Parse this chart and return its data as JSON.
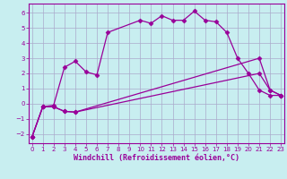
{
  "background_color": "#c8eef0",
  "grid_color": "#aaaacc",
  "line_color": "#990099",
  "xlabel": "Windchill (Refroidissement éolien,°C)",
  "xlabel_fontsize": 6.0,
  "ytick_labels": [
    "-2",
    "-1",
    "0",
    "1",
    "2",
    "3",
    "4",
    "5",
    "6"
  ],
  "yticks": [
    -2,
    -1,
    0,
    1,
    2,
    3,
    4,
    5,
    6
  ],
  "xticks": [
    0,
    1,
    2,
    3,
    4,
    5,
    6,
    7,
    8,
    9,
    10,
    11,
    12,
    13,
    14,
    15,
    16,
    17,
    18,
    19,
    20,
    21,
    22,
    23
  ],
  "ylim": [
    -2.6,
    6.6
  ],
  "xlim": [
    -0.3,
    23.3
  ],
  "line1_x": [
    0,
    1,
    2,
    3,
    4,
    5,
    6,
    7,
    10,
    11,
    12,
    13,
    14,
    15,
    16,
    17,
    18,
    19,
    20,
    21,
    22,
    23
  ],
  "line1_y": [
    -2.2,
    -0.2,
    -0.1,
    2.4,
    2.8,
    2.1,
    1.9,
    4.7,
    5.5,
    5.3,
    5.8,
    5.5,
    5.5,
    6.1,
    5.5,
    5.4,
    4.7,
    3.0,
    2.0,
    0.9,
    0.55,
    0.55
  ],
  "line2_x": [
    0,
    1,
    2,
    3,
    4,
    21,
    22,
    23
  ],
  "line2_y": [
    -2.2,
    -0.2,
    -0.2,
    -0.5,
    -0.55,
    3.0,
    0.9,
    0.55
  ],
  "line3_x": [
    0,
    1,
    2,
    3,
    4,
    21,
    22,
    23
  ],
  "line3_y": [
    -2.2,
    -0.2,
    -0.2,
    -0.5,
    -0.55,
    2.0,
    0.9,
    0.55
  ]
}
